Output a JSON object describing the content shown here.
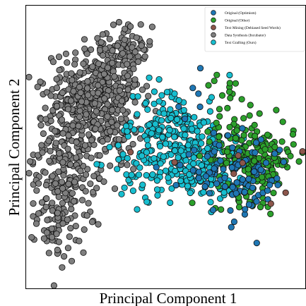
{
  "chart_data": {
    "type": "scatter",
    "title": "",
    "xlabel": "Principal Component 1",
    "ylabel": "Principal Component 2",
    "xlim": [
      0,
      100
    ],
    "ylim": [
      0,
      100
    ],
    "grid": false,
    "legend_placement": "top-right",
    "series": [
      {
        "name": "Original (Optimism)",
        "color": "#1f77b4",
        "clusters": [
          {
            "cx": 78,
            "cy": 40,
            "sx": 8,
            "sy": 7,
            "n": 75
          },
          {
            "cx": 66,
            "cy": 42,
            "sx": 8,
            "sy": 9,
            "n": 25
          },
          {
            "cx": 60,
            "cy": 62,
            "sx": 4,
            "sy": 6,
            "n": 6
          }
        ]
      },
      {
        "name": "Original (Other)",
        "color": "#2ca02c",
        "clusters": [
          {
            "cx": 82,
            "cy": 45,
            "sx": 7,
            "sy": 7,
            "n": 190
          },
          {
            "cx": 72,
            "cy": 55,
            "sx": 5,
            "sy": 7,
            "n": 30
          },
          {
            "cx": 72,
            "cy": 70,
            "sx": 3,
            "sy": 3,
            "n": 8
          }
        ]
      },
      {
        "name": "Text Mining (Debiased Seed Words)",
        "color": "#8c564b",
        "clusters": [
          {
            "cx": 68,
            "cy": 45,
            "sx": 14,
            "sy": 10,
            "n": 8
          }
        ]
      },
      {
        "name": "Data Synthesis (Incubator)",
        "color": "#7f7f7f",
        "clusters": [
          {
            "cx": 27,
            "cy": 70,
            "sx": 7,
            "sy": 10,
            "n": 330
          },
          {
            "cx": 15,
            "cy": 50,
            "sx": 6,
            "sy": 13,
            "n": 260
          },
          {
            "cx": 12,
            "cy": 25,
            "sx": 4,
            "sy": 8,
            "n": 80
          },
          {
            "cx": 37,
            "cy": 83,
            "sx": 4,
            "sy": 6,
            "n": 50
          },
          {
            "cx": 32,
            "cy": 55,
            "sx": 6,
            "sy": 7,
            "n": 60
          }
        ]
      },
      {
        "name": "Text Grafting (Ours)",
        "color": "#17becf",
        "clusters": [
          {
            "cx": 58,
            "cy": 48,
            "sx": 9,
            "sy": 8,
            "n": 210
          },
          {
            "cx": 50,
            "cy": 60,
            "sx": 5,
            "sy": 7,
            "n": 60
          },
          {
            "cx": 44,
            "cy": 45,
            "sx": 7,
            "sy": 8,
            "n": 60
          },
          {
            "cx": 70,
            "cy": 42,
            "sx": 7,
            "sy": 6,
            "n": 50
          }
        ]
      }
    ]
  }
}
